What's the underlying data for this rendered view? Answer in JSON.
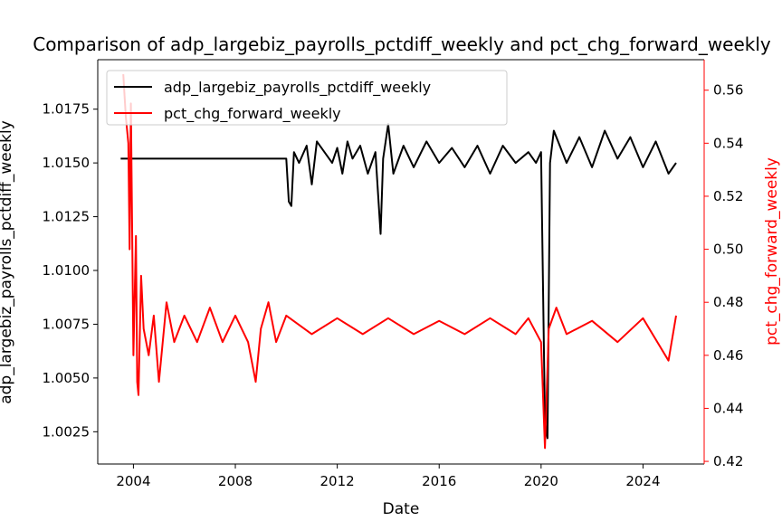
{
  "chart_data": {
    "type": "line",
    "title": "Comparison of adp_largebiz_payrolls_pctdiff_weekly and pct_chg_forward_weekly",
    "xlabel": "Date",
    "xlim": [
      2002.6,
      2026.4
    ],
    "x_ticks": [
      "2004",
      "2008",
      "2012",
      "2016",
      "2020",
      "2024"
    ],
    "left_axis": {
      "label": "adp_largebiz_payrolls_pctdiff_weekly",
      "ylim": [
        1.001,
        1.0198
      ],
      "ticks": [
        "1.0025",
        "1.0050",
        "1.0075",
        "1.0100",
        "1.0125",
        "1.0150",
        "1.0175"
      ],
      "color": "#000000"
    },
    "right_axis": {
      "label": "pct_chg_forward_weekly",
      "ylim": [
        0.419,
        0.5715
      ],
      "ticks": [
        "0.42",
        "0.44",
        "0.46",
        "0.48",
        "0.50",
        "0.52",
        "0.54",
        "0.56"
      ],
      "color": "#ff0000"
    },
    "legend": {
      "placement": "top-left"
    },
    "series": [
      {
        "name": "adp_largebiz_payrolls_pctdiff_weekly",
        "axis": "left",
        "color": "#000000",
        "points": [
          [
            2003.5,
            1.0152
          ],
          [
            2010.0,
            1.0152
          ],
          [
            2010.1,
            1.0132
          ],
          [
            2010.2,
            1.013
          ],
          [
            2010.3,
            1.0155
          ],
          [
            2010.5,
            1.015
          ],
          [
            2010.8,
            1.0158
          ],
          [
            2011.0,
            1.014
          ],
          [
            2011.2,
            1.016
          ],
          [
            2011.5,
            1.0155
          ],
          [
            2011.8,
            1.015
          ],
          [
            2012.0,
            1.0157
          ],
          [
            2012.2,
            1.0145
          ],
          [
            2012.4,
            1.016
          ],
          [
            2012.6,
            1.0152
          ],
          [
            2012.9,
            1.0158
          ],
          [
            2013.2,
            1.0145
          ],
          [
            2013.5,
            1.0155
          ],
          [
            2013.7,
            1.0117
          ],
          [
            2013.8,
            1.0152
          ],
          [
            2014.0,
            1.0168
          ],
          [
            2014.2,
            1.0145
          ],
          [
            2014.6,
            1.0158
          ],
          [
            2015.0,
            1.0148
          ],
          [
            2015.5,
            1.016
          ],
          [
            2016.0,
            1.015
          ],
          [
            2016.5,
            1.0157
          ],
          [
            2017.0,
            1.0148
          ],
          [
            2017.5,
            1.0158
          ],
          [
            2018.0,
            1.0145
          ],
          [
            2018.5,
            1.0158
          ],
          [
            2019.0,
            1.015
          ],
          [
            2019.5,
            1.0155
          ],
          [
            2019.8,
            1.015
          ],
          [
            2020.0,
            1.0155
          ],
          [
            2020.15,
            1.003
          ],
          [
            2020.25,
            1.0022
          ],
          [
            2020.35,
            1.015
          ],
          [
            2020.5,
            1.0165
          ],
          [
            2021.0,
            1.015
          ],
          [
            2021.5,
            1.0162
          ],
          [
            2022.0,
            1.0148
          ],
          [
            2022.5,
            1.0165
          ],
          [
            2023.0,
            1.0152
          ],
          [
            2023.5,
            1.0162
          ],
          [
            2024.0,
            1.0148
          ],
          [
            2024.5,
            1.016
          ],
          [
            2025.0,
            1.0145
          ],
          [
            2025.3,
            1.015
          ]
        ]
      },
      {
        "name": "pct_chg_forward_weekly",
        "axis": "right",
        "color": "#ff0000",
        "points": [
          [
            2003.6,
            0.566
          ],
          [
            2003.7,
            0.55
          ],
          [
            2003.8,
            0.54
          ],
          [
            2003.85,
            0.5
          ],
          [
            2003.9,
            0.555
          ],
          [
            2004.0,
            0.46
          ],
          [
            2004.1,
            0.505
          ],
          [
            2004.15,
            0.45
          ],
          [
            2004.2,
            0.445
          ],
          [
            2004.3,
            0.49
          ],
          [
            2004.4,
            0.47
          ],
          [
            2004.6,
            0.46
          ],
          [
            2004.8,
            0.475
          ],
          [
            2005.0,
            0.45
          ],
          [
            2005.3,
            0.48
          ],
          [
            2005.6,
            0.465
          ],
          [
            2006.0,
            0.475
          ],
          [
            2006.5,
            0.465
          ],
          [
            2007.0,
            0.478
          ],
          [
            2007.5,
            0.465
          ],
          [
            2008.0,
            0.475
          ],
          [
            2008.5,
            0.465
          ],
          [
            2008.8,
            0.45
          ],
          [
            2009.0,
            0.47
          ],
          [
            2009.3,
            0.48
          ],
          [
            2009.6,
            0.465
          ],
          [
            2010.0,
            0.475
          ],
          [
            2011.0,
            0.468
          ],
          [
            2012.0,
            0.474
          ],
          [
            2013.0,
            0.468
          ],
          [
            2014.0,
            0.474
          ],
          [
            2015.0,
            0.468
          ],
          [
            2016.0,
            0.473
          ],
          [
            2017.0,
            0.468
          ],
          [
            2018.0,
            0.474
          ],
          [
            2019.0,
            0.468
          ],
          [
            2019.5,
            0.474
          ],
          [
            2020.0,
            0.465
          ],
          [
            2020.15,
            0.425
          ],
          [
            2020.3,
            0.47
          ],
          [
            2020.6,
            0.478
          ],
          [
            2021.0,
            0.468
          ],
          [
            2022.0,
            0.473
          ],
          [
            2023.0,
            0.465
          ],
          [
            2024.0,
            0.474
          ],
          [
            2025.0,
            0.458
          ],
          [
            2025.3,
            0.475
          ]
        ]
      }
    ]
  }
}
